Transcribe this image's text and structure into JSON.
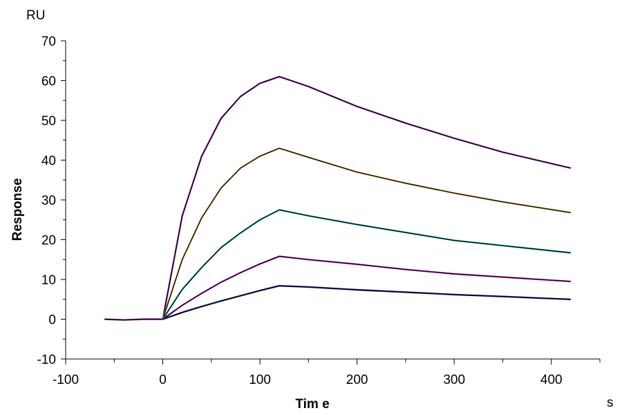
{
  "chart_data": {
    "type": "line",
    "title": "",
    "xlabel": "Tim e",
    "ylabel": "Response",
    "x_unit": "s",
    "y_unit": "RU",
    "xlim": [
      -100,
      450
    ],
    "ylim": [
      -10,
      70
    ],
    "x_ticks": [
      "-100",
      "0",
      "100",
      "200",
      "300",
      "400"
    ],
    "y_ticks": [
      "-10",
      "0",
      "10",
      "20",
      "30",
      "40",
      "50",
      "60",
      "70"
    ],
    "grid": false,
    "legend": "none",
    "series": [
      {
        "color": "#9933aa",
        "x": [
          -60,
          -40,
          -20,
          0,
          20,
          40,
          60,
          80,
          100,
          120,
          150,
          200,
          250,
          300,
          350,
          420
        ],
        "y": [
          0,
          -0.2,
          0,
          0,
          26,
          41,
          50.5,
          56,
          59.3,
          61,
          58.5,
          53.5,
          49.3,
          45.5,
          42,
          38
        ]
      },
      {
        "color": "#d4a84a",
        "x": [
          0,
          20,
          40,
          60,
          80,
          100,
          120,
          150,
          200,
          250,
          300,
          350,
          420
        ],
        "y": [
          0,
          15,
          25.5,
          33,
          38,
          41,
          43,
          40.7,
          37,
          34.2,
          31.7,
          29.5,
          26.8
        ]
      },
      {
        "color": "#22bbbb",
        "x": [
          0,
          20,
          40,
          60,
          80,
          100,
          120,
          150,
          200,
          250,
          300,
          350,
          420
        ],
        "y": [
          0,
          7.5,
          13,
          18,
          21.7,
          25,
          27.5,
          26,
          23.8,
          21.8,
          19.8,
          18.5,
          16.7
        ]
      },
      {
        "color": "#cc33cc",
        "x": [
          0,
          20,
          40,
          60,
          80,
          100,
          120,
          150,
          200,
          250,
          300,
          350,
          420
        ],
        "y": [
          0,
          3.5,
          6.5,
          9.3,
          11.7,
          13.9,
          15.8,
          15,
          13.8,
          12.5,
          11.4,
          10.6,
          9.5
        ]
      },
      {
        "color": "#1a2a99",
        "x": [
          0,
          20,
          40,
          60,
          80,
          100,
          120,
          150,
          200,
          250,
          300,
          350,
          420
        ],
        "y": [
          0,
          1.7,
          3.2,
          4.6,
          5.9,
          7.2,
          8.4,
          8.1,
          7.4,
          6.8,
          6.2,
          5.7,
          5
        ]
      }
    ]
  }
}
